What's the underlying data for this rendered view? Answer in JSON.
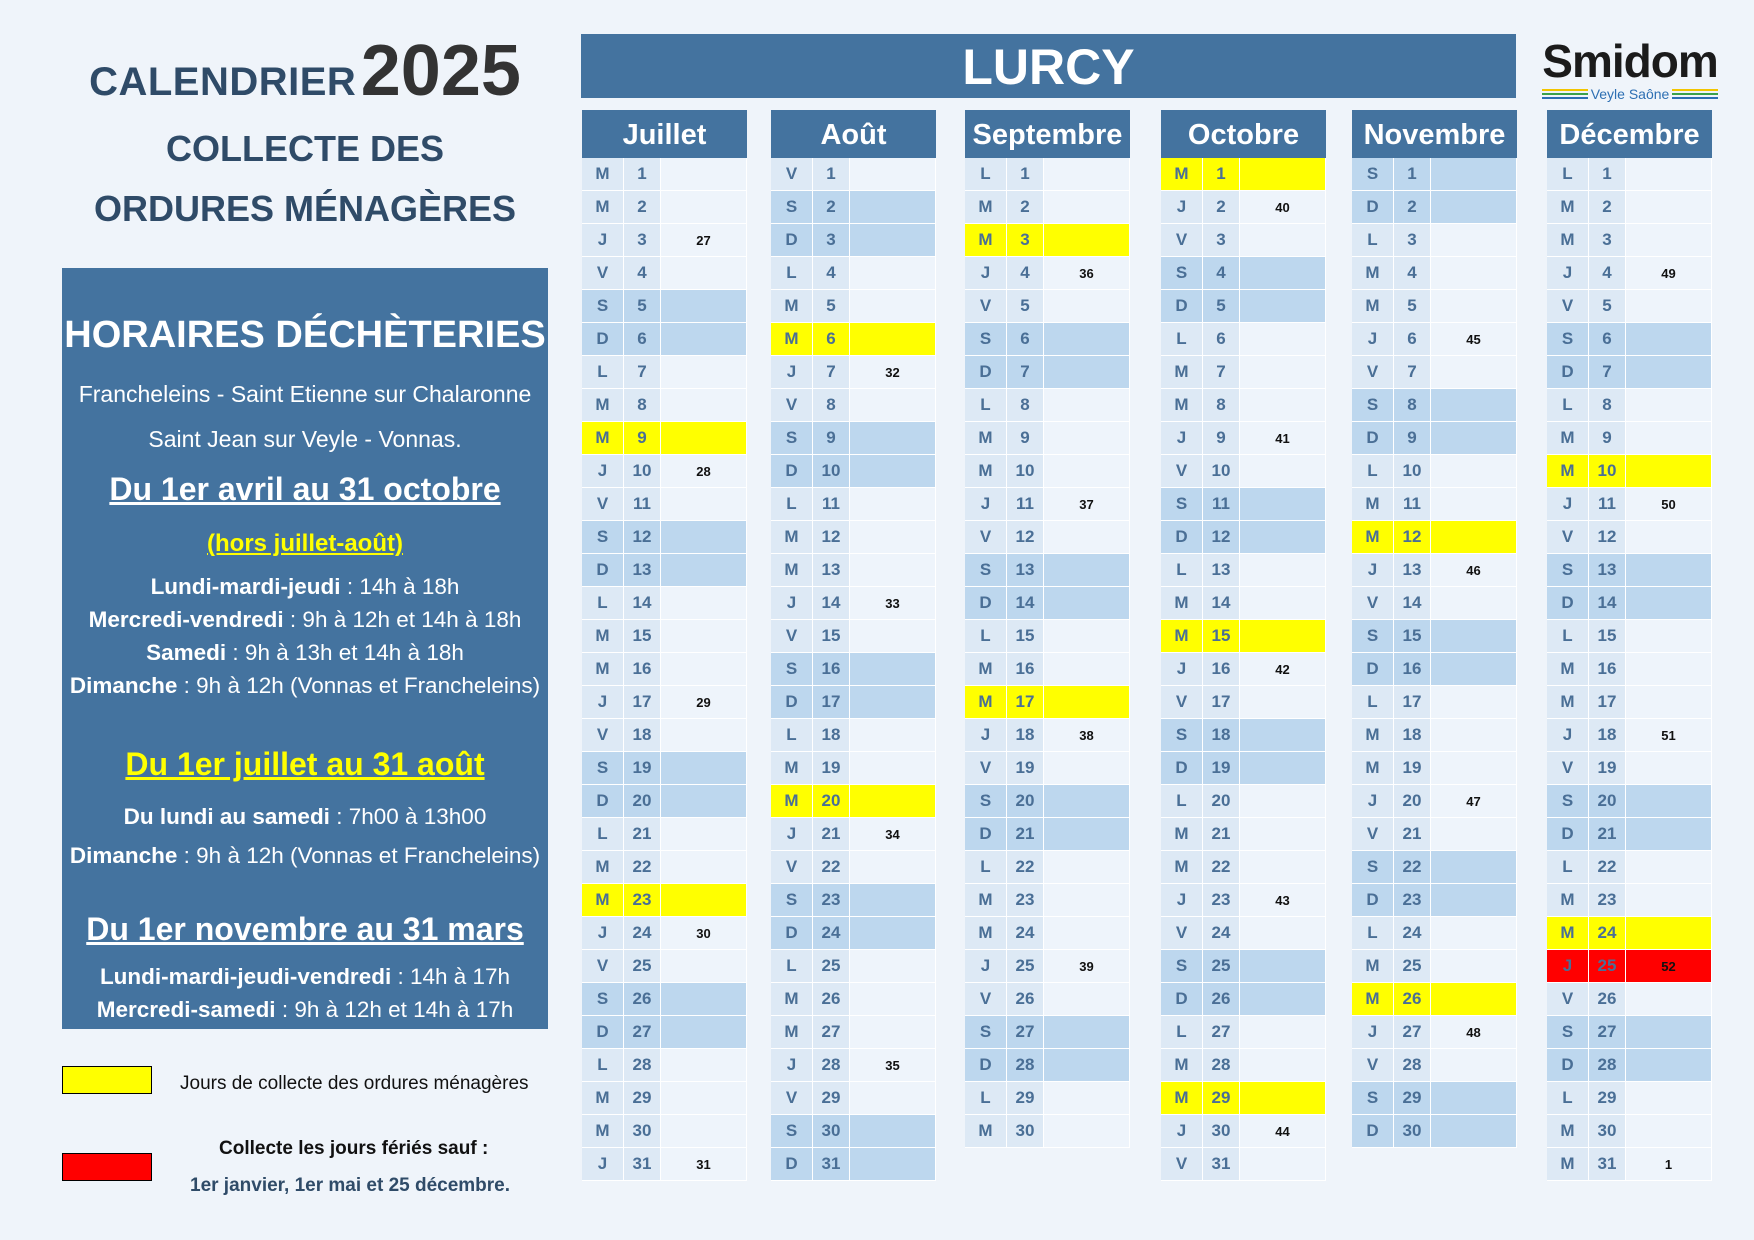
{
  "title": {
    "prefix": "CALENDRIER",
    "year": "2025",
    "line1": "COLLECTE DES",
    "line2": "ORDURES MÉNAGÈRES"
  },
  "commune": "LURCY",
  "logo": {
    "name": "Smidom",
    "tagline": "Veyle Saône"
  },
  "colors": {
    "header": "#44739f",
    "weekend": "#bdd7ee",
    "collection": "#ffff00",
    "holiday": "#ff0000"
  },
  "horaires": {
    "heading": "HORAIRES DÉCHÈTERIES",
    "locations1": "Francheleins - Saint Etienne sur Chalaronne",
    "locations2": "Saint Jean sur Veyle - Vonnas.",
    "p1": {
      "title": "Du 1er avril au 31 octobre",
      "note": "(hors juillet-août)",
      "lines": [
        [
          "Lundi-mardi-jeudi",
          " : 14h à 18h"
        ],
        [
          "Mercredi-vendredi",
          " : 9h à 12h et 14h à 18h"
        ],
        [
          "Samedi",
          " : 9h à 13h et 14h à 18h"
        ],
        [
          "Dimanche",
          " : 9h à 12h (Vonnas et Francheleins)"
        ]
      ]
    },
    "p2": {
      "title": "Du 1er juillet au 31 août",
      "lines": [
        [
          "Du lundi au samedi",
          " : 7h00 à 13h00"
        ],
        [
          "Dimanche",
          " : 9h à 12h (Vonnas et Francheleins)"
        ]
      ]
    },
    "p3": {
      "title": "Du 1er novembre au 31 mars",
      "lines": [
        [
          "Lundi-mardi-jeudi-vendredi",
          " : 14h à 17h"
        ],
        [
          "Mercredi-samedi",
          " : 9h à 12h et 14h à 17h"
        ]
      ]
    }
  },
  "legend": {
    "collection": "Jours de collecte des ordures ménagères",
    "holiday_title": "Collecte les jours fériés sauf :",
    "holiday_list": "1er janvier, 1er mai et 25 décembre."
  },
  "months": [
    {
      "name": "Juillet",
      "collection_days": [
        9,
        23
      ],
      "holidays": [],
      "rows": [
        [
          "M",
          "1",
          ""
        ],
        [
          "M",
          "2",
          ""
        ],
        [
          "J",
          "3",
          "27"
        ],
        [
          "V",
          "4",
          ""
        ],
        [
          "S",
          "5",
          ""
        ],
        [
          "D",
          "6",
          ""
        ],
        [
          "L",
          "7",
          ""
        ],
        [
          "M",
          "8",
          ""
        ],
        [
          "M",
          "9",
          ""
        ],
        [
          "J",
          "10",
          "28"
        ],
        [
          "V",
          "11",
          ""
        ],
        [
          "S",
          "12",
          ""
        ],
        [
          "D",
          "13",
          ""
        ],
        [
          "L",
          "14",
          ""
        ],
        [
          "M",
          "15",
          ""
        ],
        [
          "M",
          "16",
          ""
        ],
        [
          "J",
          "17",
          "29"
        ],
        [
          "V",
          "18",
          ""
        ],
        [
          "S",
          "19",
          ""
        ],
        [
          "D",
          "20",
          ""
        ],
        [
          "L",
          "21",
          ""
        ],
        [
          "M",
          "22",
          ""
        ],
        [
          "M",
          "23",
          ""
        ],
        [
          "J",
          "24",
          "30"
        ],
        [
          "V",
          "25",
          ""
        ],
        [
          "S",
          "26",
          ""
        ],
        [
          "D",
          "27",
          ""
        ],
        [
          "L",
          "28",
          ""
        ],
        [
          "M",
          "29",
          ""
        ],
        [
          "M",
          "30",
          ""
        ],
        [
          "J",
          "31",
          "31"
        ]
      ]
    },
    {
      "name": "Août",
      "collection_days": [
        6,
        20
      ],
      "holidays": [],
      "rows": [
        [
          "V",
          "1",
          ""
        ],
        [
          "S",
          "2",
          ""
        ],
        [
          "D",
          "3",
          ""
        ],
        [
          "L",
          "4",
          ""
        ],
        [
          "M",
          "5",
          ""
        ],
        [
          "M",
          "6",
          ""
        ],
        [
          "J",
          "7",
          "32"
        ],
        [
          "V",
          "8",
          ""
        ],
        [
          "S",
          "9",
          ""
        ],
        [
          "D",
          "10",
          ""
        ],
        [
          "L",
          "11",
          ""
        ],
        [
          "M",
          "12",
          ""
        ],
        [
          "M",
          "13",
          ""
        ],
        [
          "J",
          "14",
          "33"
        ],
        [
          "V",
          "15",
          ""
        ],
        [
          "S",
          "16",
          ""
        ],
        [
          "D",
          "17",
          ""
        ],
        [
          "L",
          "18",
          ""
        ],
        [
          "M",
          "19",
          ""
        ],
        [
          "M",
          "20",
          ""
        ],
        [
          "J",
          "21",
          "34"
        ],
        [
          "V",
          "22",
          ""
        ],
        [
          "S",
          "23",
          ""
        ],
        [
          "D",
          "24",
          ""
        ],
        [
          "L",
          "25",
          ""
        ],
        [
          "M",
          "26",
          ""
        ],
        [
          "M",
          "27",
          ""
        ],
        [
          "J",
          "28",
          "35"
        ],
        [
          "V",
          "29",
          ""
        ],
        [
          "S",
          "30",
          ""
        ],
        [
          "D",
          "31",
          ""
        ]
      ]
    },
    {
      "name": "Septembre",
      "collection_days": [
        3,
        17
      ],
      "holidays": [],
      "rows": [
        [
          "L",
          "1",
          ""
        ],
        [
          "M",
          "2",
          ""
        ],
        [
          "M",
          "3",
          ""
        ],
        [
          "J",
          "4",
          "36"
        ],
        [
          "V",
          "5",
          ""
        ],
        [
          "S",
          "6",
          ""
        ],
        [
          "D",
          "7",
          ""
        ],
        [
          "L",
          "8",
          ""
        ],
        [
          "M",
          "9",
          ""
        ],
        [
          "M",
          "10",
          ""
        ],
        [
          "J",
          "11",
          "37"
        ],
        [
          "V",
          "12",
          ""
        ],
        [
          "S",
          "13",
          ""
        ],
        [
          "D",
          "14",
          ""
        ],
        [
          "L",
          "15",
          ""
        ],
        [
          "M",
          "16",
          ""
        ],
        [
          "M",
          "17",
          ""
        ],
        [
          "J",
          "18",
          "38"
        ],
        [
          "V",
          "19",
          ""
        ],
        [
          "S",
          "20",
          ""
        ],
        [
          "D",
          "21",
          ""
        ],
        [
          "L",
          "22",
          ""
        ],
        [
          "M",
          "23",
          ""
        ],
        [
          "M",
          "24",
          ""
        ],
        [
          "J",
          "25",
          "39"
        ],
        [
          "V",
          "26",
          ""
        ],
        [
          "S",
          "27",
          ""
        ],
        [
          "D",
          "28",
          ""
        ],
        [
          "L",
          "29",
          ""
        ],
        [
          "M",
          "30",
          ""
        ]
      ]
    },
    {
      "name": "Octobre",
      "collection_days": [
        1,
        15,
        29
      ],
      "holidays": [],
      "rows": [
        [
          "M",
          "1",
          ""
        ],
        [
          "J",
          "2",
          "40"
        ],
        [
          "V",
          "3",
          ""
        ],
        [
          "S",
          "4",
          ""
        ],
        [
          "D",
          "5",
          ""
        ],
        [
          "L",
          "6",
          ""
        ],
        [
          "M",
          "7",
          ""
        ],
        [
          "M",
          "8",
          ""
        ],
        [
          "J",
          "9",
          "41"
        ],
        [
          "V",
          "10",
          ""
        ],
        [
          "S",
          "11",
          ""
        ],
        [
          "D",
          "12",
          ""
        ],
        [
          "L",
          "13",
          ""
        ],
        [
          "M",
          "14",
          ""
        ],
        [
          "M",
          "15",
          ""
        ],
        [
          "J",
          "16",
          "42"
        ],
        [
          "V",
          "17",
          ""
        ],
        [
          "S",
          "18",
          ""
        ],
        [
          "D",
          "19",
          ""
        ],
        [
          "L",
          "20",
          ""
        ],
        [
          "M",
          "21",
          ""
        ],
        [
          "M",
          "22",
          ""
        ],
        [
          "J",
          "23",
          "43"
        ],
        [
          "V",
          "24",
          ""
        ],
        [
          "S",
          "25",
          ""
        ],
        [
          "D",
          "26",
          ""
        ],
        [
          "L",
          "27",
          ""
        ],
        [
          "M",
          "28",
          ""
        ],
        [
          "M",
          "29",
          ""
        ],
        [
          "J",
          "30",
          "44"
        ],
        [
          "V",
          "31",
          ""
        ]
      ]
    },
    {
      "name": "Novembre",
      "collection_days": [
        12,
        26
      ],
      "holidays": [],
      "rows": [
        [
          "S",
          "1",
          ""
        ],
        [
          "D",
          "2",
          ""
        ],
        [
          "L",
          "3",
          ""
        ],
        [
          "M",
          "4",
          ""
        ],
        [
          "M",
          "5",
          ""
        ],
        [
          "J",
          "6",
          "45"
        ],
        [
          "V",
          "7",
          ""
        ],
        [
          "S",
          "8",
          ""
        ],
        [
          "D",
          "9",
          ""
        ],
        [
          "L",
          "10",
          ""
        ],
        [
          "M",
          "11",
          ""
        ],
        [
          "M",
          "12",
          ""
        ],
        [
          "J",
          "13",
          "46"
        ],
        [
          "V",
          "14",
          ""
        ],
        [
          "S",
          "15",
          ""
        ],
        [
          "D",
          "16",
          ""
        ],
        [
          "L",
          "17",
          ""
        ],
        [
          "M",
          "18",
          ""
        ],
        [
          "M",
          "19",
          ""
        ],
        [
          "J",
          "20",
          "47"
        ],
        [
          "V",
          "21",
          ""
        ],
        [
          "S",
          "22",
          ""
        ],
        [
          "D",
          "23",
          ""
        ],
        [
          "L",
          "24",
          ""
        ],
        [
          "M",
          "25",
          ""
        ],
        [
          "M",
          "26",
          ""
        ],
        [
          "J",
          "27",
          "48"
        ],
        [
          "V",
          "28",
          ""
        ],
        [
          "S",
          "29",
          ""
        ],
        [
          "D",
          "30",
          ""
        ]
      ]
    },
    {
      "name": "Décembre",
      "collection_days": [
        10,
        24
      ],
      "holidays": [
        25
      ],
      "rows": [
        [
          "L",
          "1",
          ""
        ],
        [
          "M",
          "2",
          ""
        ],
        [
          "M",
          "3",
          ""
        ],
        [
          "J",
          "4",
          "49"
        ],
        [
          "V",
          "5",
          ""
        ],
        [
          "S",
          "6",
          ""
        ],
        [
          "D",
          "7",
          ""
        ],
        [
          "L",
          "8",
          ""
        ],
        [
          "M",
          "9",
          ""
        ],
        [
          "M",
          "10",
          ""
        ],
        [
          "J",
          "11",
          "50"
        ],
        [
          "V",
          "12",
          ""
        ],
        [
          "S",
          "13",
          ""
        ],
        [
          "D",
          "14",
          ""
        ],
        [
          "L",
          "15",
          ""
        ],
        [
          "M",
          "16",
          ""
        ],
        [
          "M",
          "17",
          ""
        ],
        [
          "J",
          "18",
          "51"
        ],
        [
          "V",
          "19",
          ""
        ],
        [
          "S",
          "20",
          ""
        ],
        [
          "D",
          "21",
          ""
        ],
        [
          "L",
          "22",
          ""
        ],
        [
          "M",
          "23",
          ""
        ],
        [
          "M",
          "24",
          ""
        ],
        [
          "J",
          "25",
          "52"
        ],
        [
          "V",
          "26",
          ""
        ],
        [
          "S",
          "27",
          ""
        ],
        [
          "D",
          "28",
          ""
        ],
        [
          "L",
          "29",
          ""
        ],
        [
          "M",
          "30",
          ""
        ],
        [
          "M",
          "31",
          "1"
        ]
      ]
    }
  ]
}
